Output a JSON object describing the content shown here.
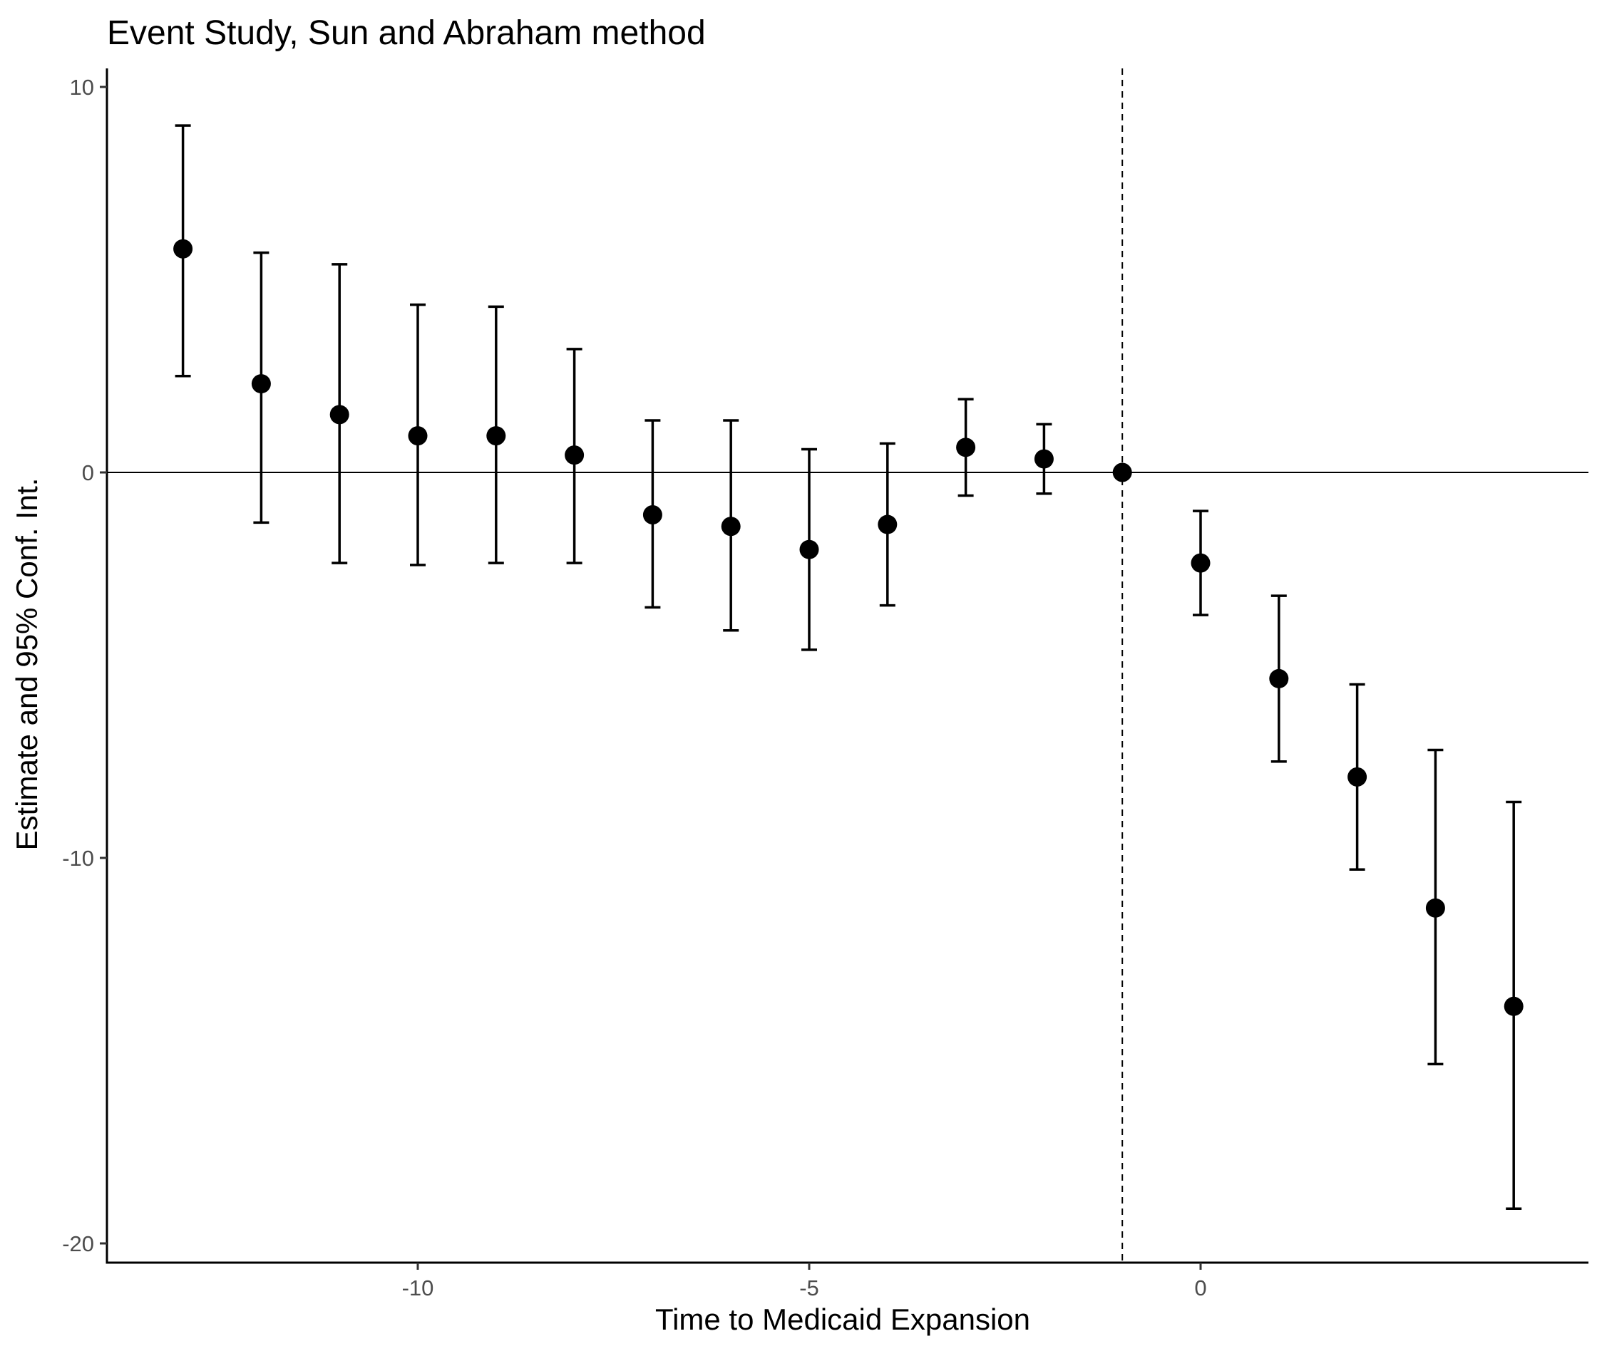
{
  "chart_data": {
    "type": "scatter",
    "title": "Event Study, Sun and Abraham method",
    "xlabel": "Time to Medicaid Expansion",
    "ylabel": "Estimate and 95% Conf. Int.",
    "xlim": [
      -14.0,
      5.0
    ],
    "ylim": [
      -20.5,
      10.4
    ],
    "x_ticks": [
      -10,
      -5,
      0
    ],
    "x_tick_labels": [
      "-10",
      "-5",
      "0"
    ],
    "y_ticks": [
      10,
      0,
      -10,
      -20
    ],
    "y_tick_labels": [
      "10",
      "0",
      "-10",
      "-20"
    ],
    "grid": false,
    "reference_lines": {
      "horizontal_y": 0,
      "vertical_dashed_x": -1
    },
    "series": [
      {
        "x": [
          -13,
          -12,
          -11,
          -10,
          -9,
          -8,
          -7,
          -6,
          -5,
          -4,
          -3,
          -2,
          -1,
          0,
          1,
          2,
          3,
          4
        ],
        "estimate": [
          5.8,
          2.3,
          1.5,
          0.95,
          0.95,
          0.45,
          -1.1,
          -1.4,
          -2.0,
          -1.35,
          0.65,
          0.35,
          0.0,
          -2.35,
          -5.35,
          -7.9,
          -11.3,
          -13.85
        ],
        "ci_low": [
          2.5,
          -1.3,
          -2.35,
          -2.4,
          -2.35,
          -2.35,
          -3.5,
          -4.1,
          -4.6,
          -3.45,
          -0.6,
          -0.55,
          0.0,
          -3.7,
          -7.5,
          -10.3,
          -15.35,
          -19.1
        ],
        "ci_high": [
          9.0,
          5.7,
          5.4,
          4.35,
          4.3,
          3.2,
          1.35,
          1.35,
          0.6,
          0.75,
          1.9,
          1.25,
          0.0,
          -1.0,
          -3.2,
          -5.5,
          -7.2,
          -8.55
        ]
      }
    ],
    "colors": {
      "points": "#000000",
      "lines": "#000000",
      "tick_text": "#4d4d4d"
    }
  }
}
